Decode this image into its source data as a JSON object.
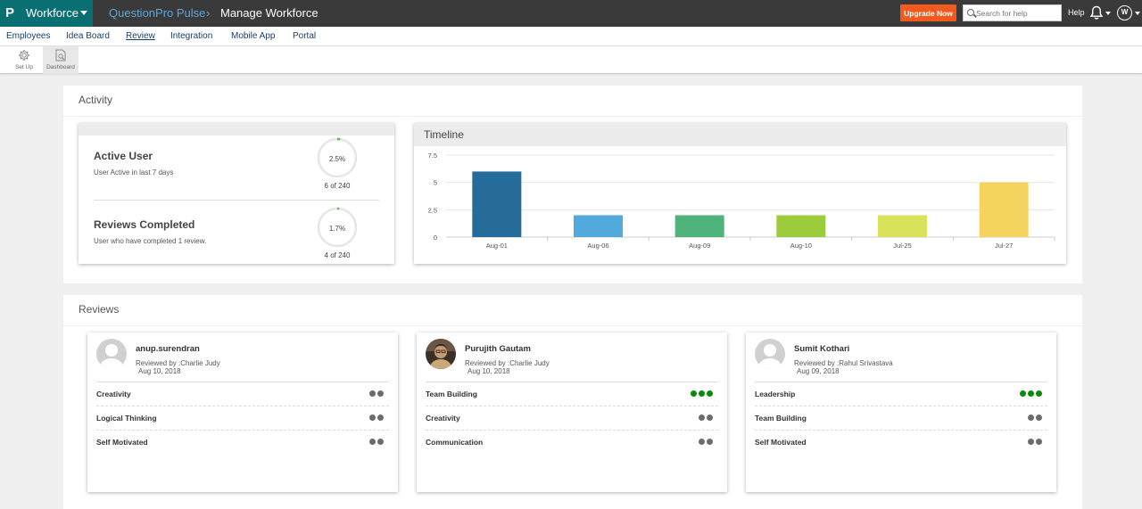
{
  "topbar": {
    "brand_logo": "P",
    "brand_name": "Workforce",
    "breadcrumb_product": "QuestionPro Pulse",
    "breadcrumb_separator": "›",
    "breadcrumb_page": "Manage Workforce",
    "upgrade_label": "Upgrade Now",
    "search_placeholder": "Search for help",
    "help_label": "Help",
    "user_initial": "W"
  },
  "nav": {
    "items": [
      "Employees",
      "Idea Board",
      "Review",
      "Integration",
      "Mobile App",
      "Portal"
    ],
    "active": "Review"
  },
  "toolbar": {
    "setup_label": "Set Up",
    "dashboard_label": "Dashboard"
  },
  "activity": {
    "title": "Activity",
    "active_user": {
      "title": "Active User",
      "subtitle": "User Active in last 7 days",
      "percent_label": "2.5%",
      "percent": 2.5,
      "count": "6 of 240"
    },
    "reviews_completed": {
      "title": "Reviews Completed",
      "subtitle": "User who have completed 1 review.",
      "percent_label": "1.7%",
      "percent": 1.7,
      "count": "4 of 240"
    },
    "ring_color": "#5cb85c"
  },
  "timeline": {
    "title": "Timeline"
  },
  "chart_data": {
    "type": "bar",
    "title": "Timeline",
    "categories": [
      "Aug-01",
      "Aug-06",
      "Aug-09",
      "Aug-10",
      "Jul-25",
      "Jul-27"
    ],
    "values": [
      6,
      2,
      2,
      2,
      2,
      5
    ],
    "colors": [
      "#266c9a",
      "#51a9dc",
      "#4fb37c",
      "#9ccc3b",
      "#d8e25a",
      "#f4d35e"
    ],
    "yticks": [
      "7.5",
      "5",
      "2.5",
      "0"
    ],
    "ylim": [
      0,
      7.5
    ],
    "grid": true
  },
  "reviews": {
    "title": "Reviews",
    "cards": [
      {
        "name": "anup.surendran",
        "reviewed_by": "Reviewed by :Charlie Judy",
        "date": "Aug 10, 2018",
        "avatar": "placeholder",
        "skills": [
          {
            "label": "Creativity",
            "level": 2
          },
          {
            "label": "Logical Thinking",
            "level": 2
          },
          {
            "label": "Self Motivated",
            "level": 2
          }
        ]
      },
      {
        "name": "Purujith Gautam",
        "reviewed_by": "Reviewed by :Charlie Judy",
        "date": "Aug 10, 2018",
        "avatar": "photo",
        "skills": [
          {
            "label": "Team Building",
            "level": 3
          },
          {
            "label": "Creativity",
            "level": 2
          },
          {
            "label": "Communication",
            "level": 2
          }
        ]
      },
      {
        "name": "Sumit Kothari",
        "reviewed_by": "Reviewed by :Rahul Srivastava",
        "date": "Aug 09, 2018",
        "avatar": "placeholder",
        "skills": [
          {
            "label": "Leadership",
            "level": 3
          },
          {
            "label": "Team Building",
            "level": 2
          },
          {
            "label": "Self Motivated",
            "level": 2
          }
        ]
      }
    ]
  }
}
